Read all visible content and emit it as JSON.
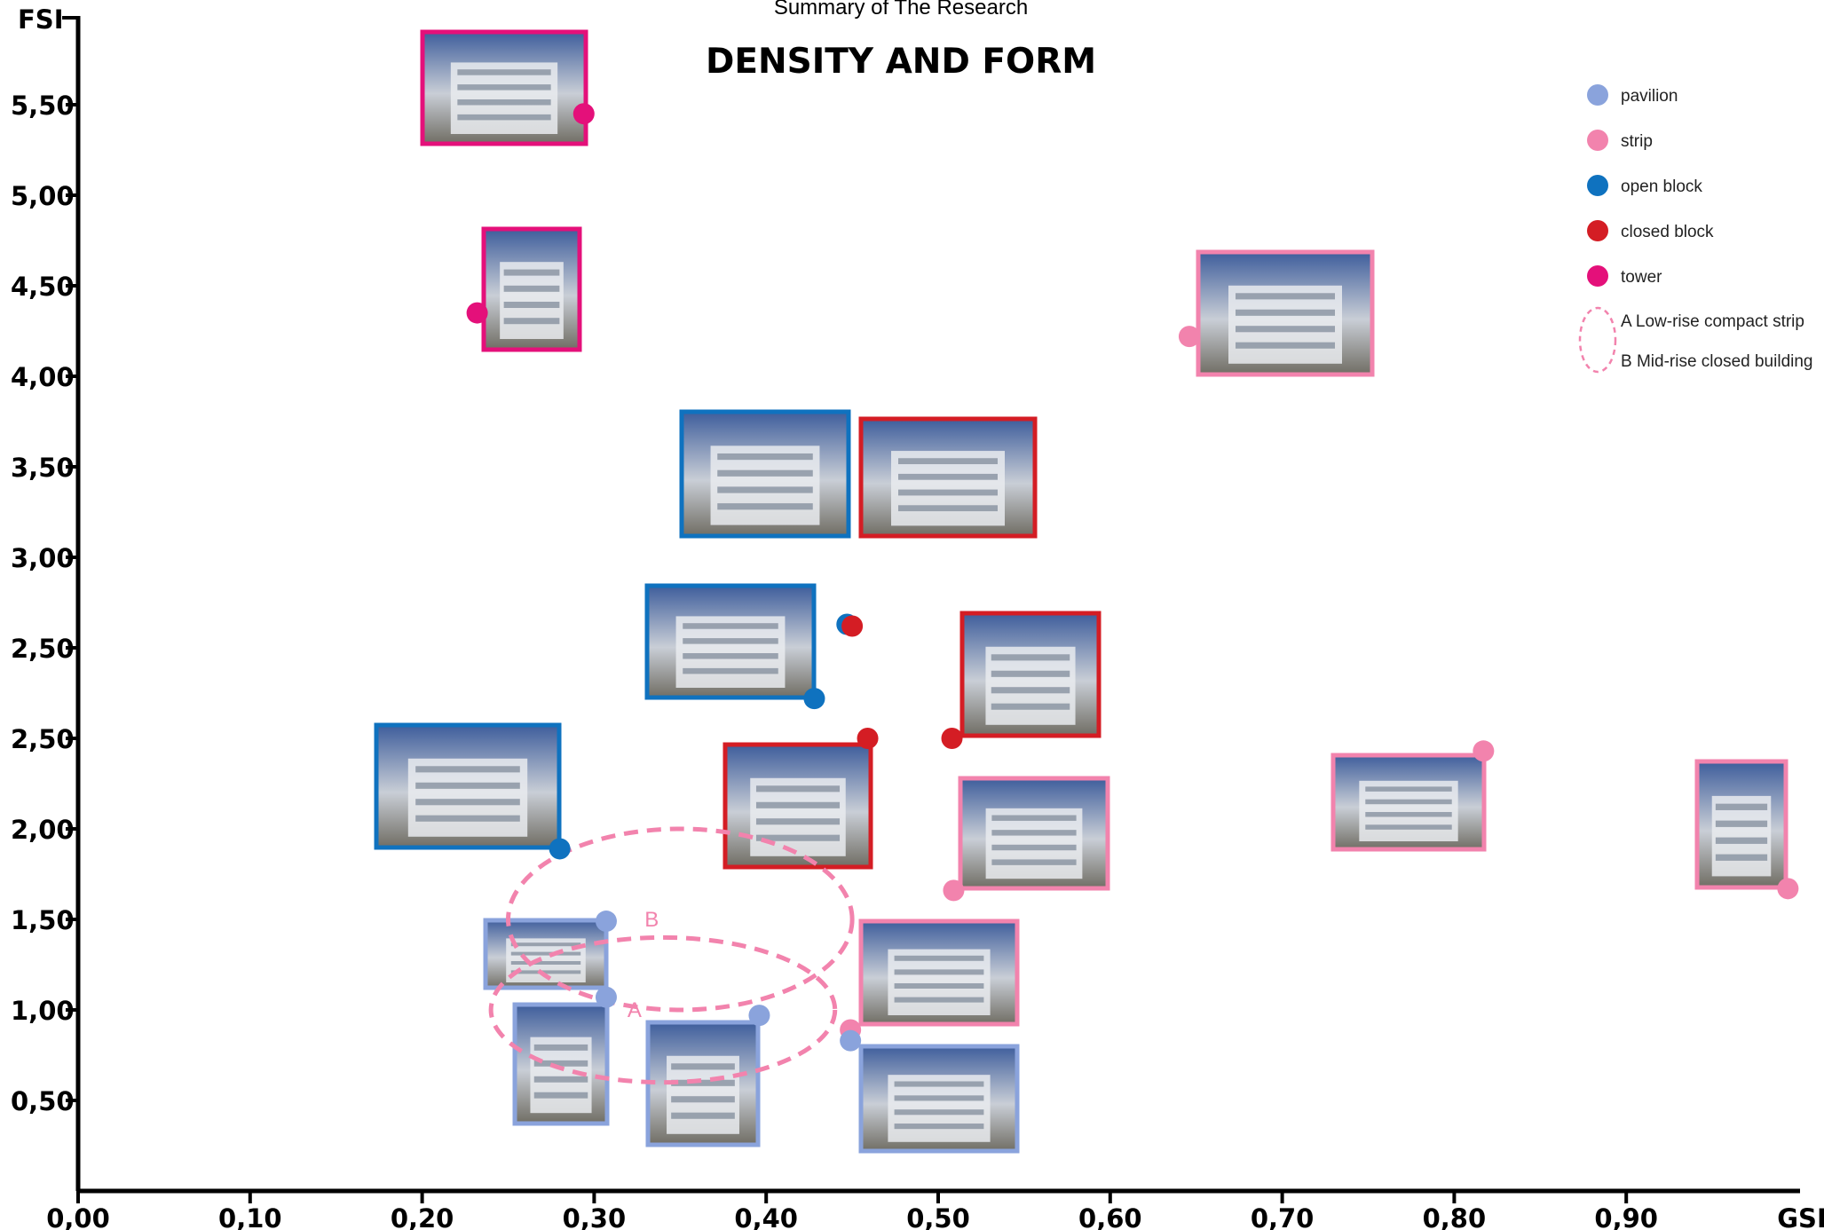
{
  "chart_data": {
    "type": "scatter",
    "subtitle": "Summary of The Research",
    "title": "DENSITY AND FORM",
    "xlabel": "GSI",
    "ylabel": "FSI",
    "xlim": [
      0,
      1.0
    ],
    "x_ticks": [
      "0,00",
      "0,10",
      "0,20",
      "0,30",
      "0,40",
      "0,50",
      "0,60",
      "0,70",
      "0,80",
      "0,90"
    ],
    "y_ticks": [
      "0,50",
      "1,00",
      "1,50",
      "2,00",
      "2,50",
      "2,50",
      "3,00",
      "3,50",
      "4,00",
      "4,50",
      "5,00",
      "5,50"
    ],
    "colors": {
      "pavilion": "#8aa3dc",
      "strip": "#f283ad",
      "open block": "#0f72bf",
      "closed block": "#d41d24",
      "tower": "#e4107a"
    },
    "legend": [
      {
        "label": "pavilion",
        "category": "pavilion"
      },
      {
        "label": "strip",
        "category": "strip"
      },
      {
        "label": "open block",
        "category": "open block"
      },
      {
        "label": "closed block",
        "category": "closed block"
      },
      {
        "label": "tower",
        "category": "tower"
      }
    ],
    "region_legend": [
      "A Low-rise compact strip",
      "B Mid-rise closed building"
    ],
    "regions": [
      {
        "label": "A",
        "cx": 0.34,
        "cy": 1.0,
        "rx": 0.1,
        "ry": 0.4
      },
      {
        "label": "B",
        "cx": 0.35,
        "cy": 1.5,
        "rx": 0.1,
        "ry": 0.5
      }
    ],
    "points": [
      {
        "category": "tower",
        "x": 0.294,
        "y": 5.95
      },
      {
        "category": "tower",
        "x": 0.232,
        "y": 4.85
      },
      {
        "category": "strip",
        "x": 0.646,
        "y": 4.72
      },
      {
        "category": "open block",
        "x": 0.447,
        "y": 3.13
      },
      {
        "category": "closed block",
        "x": 0.45,
        "y": 3.12
      },
      {
        "category": "open block",
        "x": 0.428,
        "y": 2.72
      },
      {
        "category": "closed block",
        "x": 0.459,
        "y": 2.5
      },
      {
        "category": "closed block",
        "x": 0.508,
        "y": 2.5
      },
      {
        "category": "strip",
        "x": 0.817,
        "y": 2.43
      },
      {
        "category": "open block",
        "x": 0.28,
        "y": 1.89
      },
      {
        "category": "strip",
        "x": 0.509,
        "y": 1.66
      },
      {
        "category": "strip",
        "x": 0.994,
        "y": 1.67
      },
      {
        "category": "pavilion",
        "x": 0.307,
        "y": 1.49
      },
      {
        "category": "pavilion",
        "x": 0.307,
        "y": 1.07
      },
      {
        "category": "pavilion",
        "x": 0.396,
        "y": 0.97
      },
      {
        "category": "strip",
        "x": 0.449,
        "y": 0.89
      },
      {
        "category": "pavilion",
        "x": 0.449,
        "y": 0.83
      }
    ]
  }
}
